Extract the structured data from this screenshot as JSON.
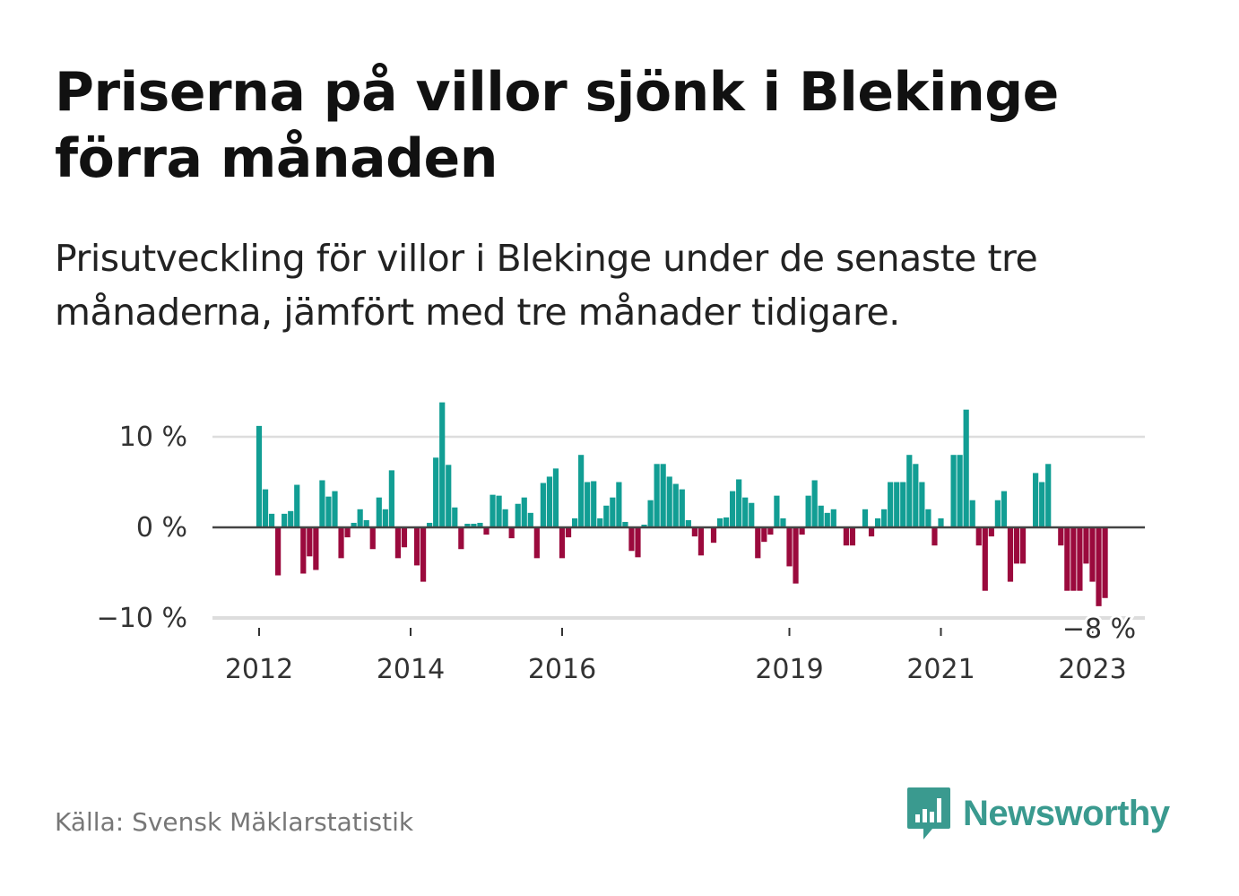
{
  "title": "Priserna på villor sjönk i Blekinge förra månaden",
  "subtitle": "Prisutveckling för villor i Blekinge under de senaste tre månaderna, jämfört med tre månader tidigare.",
  "source": "Källa: Svensk Mäklarstatistik",
  "brand": {
    "name": "Newsworthy",
    "icon": "newsworthy-logo-icon"
  },
  "colors": {
    "positive": "#129e94",
    "negative": "#9b0a3d",
    "grid": "#dddddd",
    "baseline": "#444444"
  },
  "chart_data": {
    "type": "bar",
    "ylim": [
      -10,
      10
    ],
    "y_ticks": [
      10,
      0,
      -10
    ],
    "y_tick_labels": [
      "10 %",
      "0 %",
      "−10 %"
    ],
    "x_tick_labels": [
      {
        "label": "2012",
        "year": 2012
      },
      {
        "label": "2014",
        "year": 2014
      },
      {
        "label": "2016",
        "year": 2016
      },
      {
        "label": "2019",
        "year": 2019
      },
      {
        "label": "2021",
        "year": 2021
      },
      {
        "label": "2023",
        "year": 2023
      }
    ],
    "annotation": "−8 %",
    "grid": true,
    "x_start": "2012-01",
    "values": [
      11.2,
      4.2,
      1.5,
      -5.3,
      1.5,
      1.8,
      4.7,
      -5.1,
      -3.2,
      -4.7,
      5.2,
      3.4,
      4.0,
      -3.4,
      -1.1,
      0.5,
      2.0,
      0.8,
      -2.4,
      3.3,
      2.0,
      6.3,
      -3.4,
      -2.2,
      0.0,
      -4.2,
      -6.0,
      0.5,
      7.7,
      13.8,
      6.9,
      2.2,
      -2.4,
      0.4,
      0.4,
      0.5,
      -0.8,
      3.6,
      3.5,
      2.0,
      -1.2,
      2.6,
      3.3,
      1.6,
      -3.4,
      4.9,
      5.6,
      6.5,
      -3.4,
      -1.1,
      1.0,
      8.0,
      5.0,
      5.1,
      1.0,
      2.4,
      3.3,
      5.0,
      0.6,
      -2.6,
      -3.3,
      0.3,
      3.0,
      7.0,
      7.0,
      5.6,
      4.8,
      4.2,
      0.8,
      -1.0,
      -3.1,
      0.0,
      -1.7,
      1.0,
      1.1,
      4.0,
      5.3,
      3.3,
      2.7,
      -3.4,
      -1.6,
      -0.8,
      3.5,
      1.0,
      -4.3,
      -6.2,
      -0.8,
      3.5,
      5.2,
      2.4,
      1.6,
      2.0,
      0.0,
      -2.0,
      -2.0,
      0.0,
      2.0,
      -1.0,
      1.0,
      2.0,
      5.0,
      5.0,
      5.0,
      8.0,
      7.0,
      5.0,
      2.0,
      -2.0,
      1.0,
      0.0,
      8.0,
      8.0,
      13.0,
      3.0,
      -2.0,
      -7.0,
      -1.0,
      3.0,
      4.0,
      -6.0,
      -4.0,
      -4.0,
      0.0,
      6.0,
      5.0,
      7.0,
      0.0,
      -2.0,
      -7.0,
      -7.0,
      -7.0,
      -4.0,
      -6.0,
      -8.7,
      -7.8
    ]
  }
}
